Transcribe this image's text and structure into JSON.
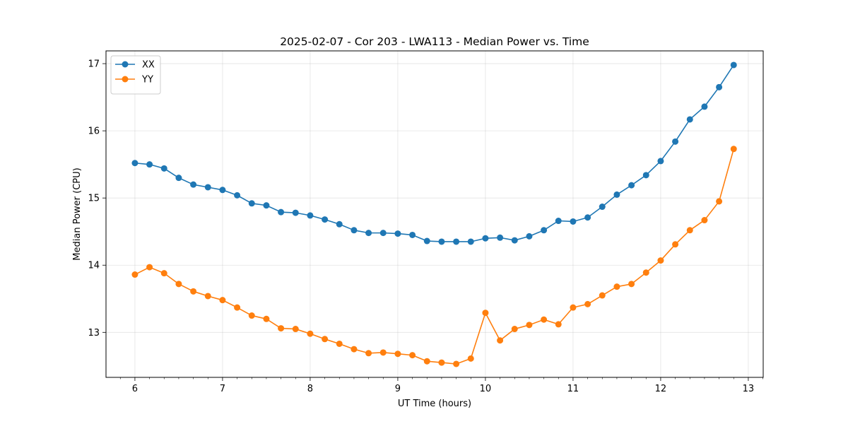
{
  "chart_data": {
    "type": "line",
    "title": "2025-02-07 - Cor 203 - LWA113 - Median Power vs. Time",
    "xlabel": "UT Time (hours)",
    "ylabel": "Median Power (CPU)",
    "xlim": [
      5.67,
      13.17
    ],
    "ylim": [
      12.33,
      17.19
    ],
    "xticks": [
      6,
      7,
      8,
      9,
      10,
      11,
      12,
      13
    ],
    "yticks": [
      13,
      14,
      15,
      16,
      17
    ],
    "grid": true,
    "legend_position": "top-left",
    "x": [
      6.0,
      6.1667,
      6.3333,
      6.5,
      6.6667,
      6.8333,
      7.0,
      7.1667,
      7.3333,
      7.5,
      7.6667,
      7.8333,
      8.0,
      8.1667,
      8.3333,
      8.5,
      8.6667,
      8.8333,
      9.0,
      9.1667,
      9.3333,
      9.5,
      9.6667,
      9.8333,
      10.0,
      10.1667,
      10.3333,
      10.5,
      10.6667,
      10.8333,
      11.0,
      11.1667,
      11.3333,
      11.5,
      11.6667,
      11.8333,
      12.0,
      12.1667,
      12.3333,
      12.5,
      12.6667,
      12.8333
    ],
    "series": [
      {
        "name": "XX",
        "color": "#1f77b4",
        "values": [
          15.52,
          15.5,
          15.44,
          15.3,
          15.2,
          15.16,
          15.12,
          15.04,
          14.92,
          14.89,
          14.79,
          14.78,
          14.74,
          14.68,
          14.61,
          14.52,
          14.48,
          14.48,
          14.47,
          14.45,
          14.36,
          14.35,
          14.35,
          14.35,
          14.4,
          14.41,
          14.37,
          14.43,
          14.52,
          14.66,
          14.65,
          14.71,
          14.87,
          15.05,
          15.19,
          15.34,
          15.55,
          15.84,
          16.17,
          16.36,
          16.65,
          16.98
        ]
      },
      {
        "name": "YY",
        "color": "#ff7f0e",
        "values": [
          13.86,
          13.97,
          13.88,
          13.72,
          13.61,
          13.54,
          13.48,
          13.37,
          13.25,
          13.2,
          13.06,
          13.05,
          12.98,
          12.9,
          12.83,
          12.75,
          12.69,
          12.7,
          12.68,
          12.66,
          12.57,
          12.55,
          12.53,
          12.61,
          13.29,
          12.88,
          13.05,
          13.11,
          13.19,
          13.12,
          13.37,
          13.42,
          13.55,
          13.68,
          13.72,
          13.89,
          14.07,
          14.31,
          14.52,
          14.67,
          14.95,
          15.73
        ]
      }
    ]
  }
}
